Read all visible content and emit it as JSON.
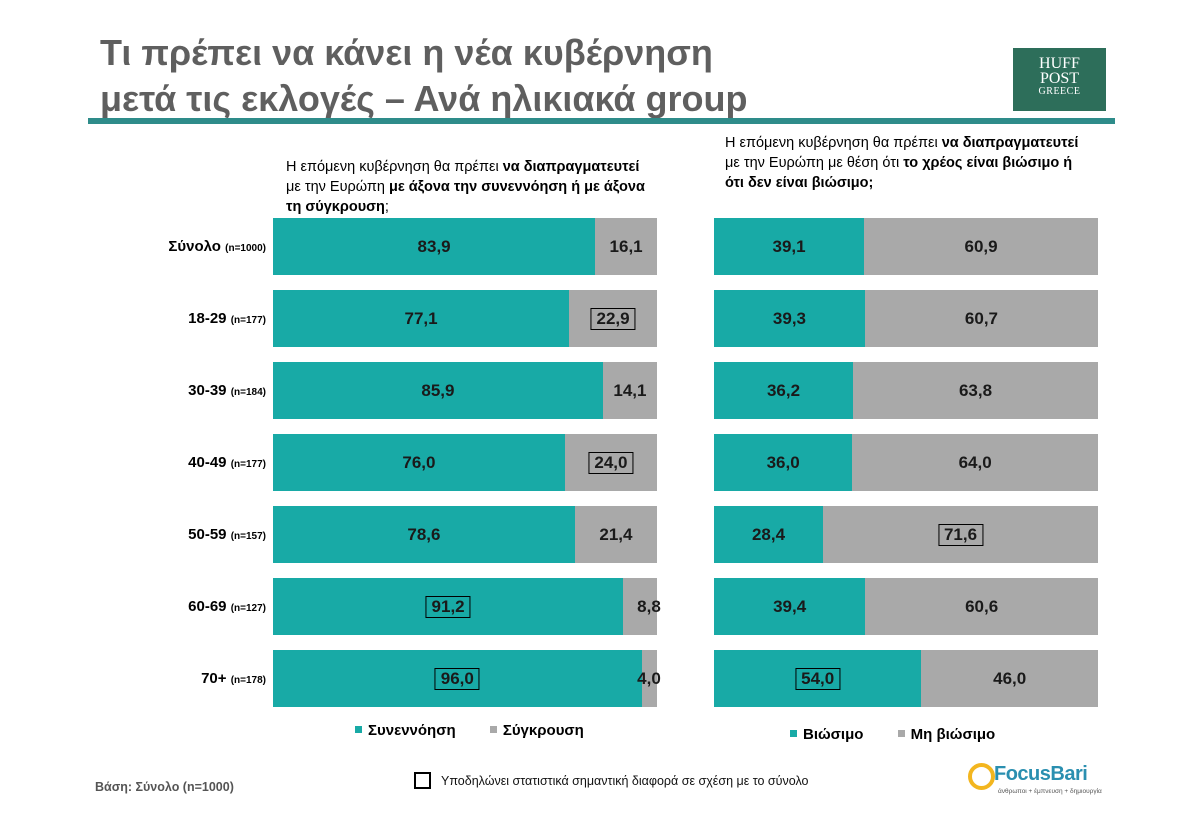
{
  "title_line1": "Τι πρέπει να κάνει η νέα κυβέρνηση",
  "title_line2": "μετά τις εκλογές – Ανά ηλικιακά group",
  "logo": {
    "line1": "HUFF",
    "line2": "POST",
    "line3": "GREECE"
  },
  "left_header": {
    "p1": "Η επόμενη κυβέρνηση θα πρέπει ",
    "b1": "να διαπραγματευτεί",
    "p2": " με την Ευρώπη ",
    "b2": "με άξονα την συνεννόηση ή με άξονα τη σύγκρουση",
    "p3": ";"
  },
  "right_header": {
    "p1": "Η επόμενη κυβέρνηση θα πρέπει ",
    "b1": "να διαπραγματευτεί",
    "p2": " με την Ευρώπη με θέση ότι ",
    "b2": "το χρέος είναι βιώσιμο ή ότι δεν είναι βιώσιμο;"
  },
  "rows": [
    {
      "label": "Σύνολο",
      "n": "(n=1000)"
    },
    {
      "label": "18-29",
      "n": "(n=177)"
    },
    {
      "label": "30-39",
      "n": "(n=184)"
    },
    {
      "label": "40-49",
      "n": "(n=177)"
    },
    {
      "label": "50-59",
      "n": "(n=157)"
    },
    {
      "label": "60-69",
      "n": "(n=127)"
    },
    {
      "label": "70+",
      "n": "(n=178)"
    }
  ],
  "chart_data": [
    {
      "type": "bar",
      "stacked": true,
      "orientation": "horizontal",
      "categories": [
        "Σύνολο (n=1000)",
        "18-29 (n=177)",
        "30-39 (n=184)",
        "40-49 (n=177)",
        "50-59 (n=157)",
        "60-69 (n=127)",
        "70+ (n=178)"
      ],
      "series": [
        {
          "name": "Συνεννόηση",
          "color": "#18aaa6",
          "values": [
            83.9,
            77.1,
            85.9,
            76.0,
            78.6,
            91.2,
            96.0
          ],
          "labels": [
            "83,9",
            "77,1",
            "85,9",
            "76,0",
            "78,6",
            "91,2",
            "96,0"
          ],
          "significant": [
            false,
            false,
            false,
            false,
            false,
            true,
            true
          ]
        },
        {
          "name": "Σύγκρουση",
          "color": "#a9a9a9",
          "values": [
            16.1,
            22.9,
            14.1,
            24.0,
            21.4,
            8.8,
            4.0
          ],
          "labels": [
            "16,1",
            "22,9",
            "14,1",
            "24,0",
            "21,4",
            "8,8",
            "4,0"
          ],
          "significant": [
            false,
            true,
            false,
            true,
            false,
            false,
            false
          ]
        }
      ],
      "xlim": [
        0,
        100
      ]
    },
    {
      "type": "bar",
      "stacked": true,
      "orientation": "horizontal",
      "categories": [
        "Σύνολο (n=1000)",
        "18-29 (n=177)",
        "30-39 (n=184)",
        "40-49 (n=177)",
        "50-59 (n=157)",
        "60-69 (n=127)",
        "70+ (n=178)"
      ],
      "series": [
        {
          "name": "Βιώσιμο",
          "color": "#18aaa6",
          "values": [
            39.1,
            39.3,
            36.2,
            36.0,
            28.4,
            39.4,
            54.0
          ],
          "labels": [
            "39,1",
            "39,3",
            "36,2",
            "36,0",
            "28,4",
            "39,4",
            "54,0"
          ],
          "significant": [
            false,
            false,
            false,
            false,
            false,
            false,
            true
          ]
        },
        {
          "name": "Μη βιώσιμο",
          "color": "#a9a9a9",
          "values": [
            60.9,
            60.7,
            63.8,
            64.0,
            71.6,
            60.6,
            46.0
          ],
          "labels": [
            "60,9",
            "60,7",
            "63,8",
            "64,0",
            "71,6",
            "60,6",
            "46,0"
          ],
          "significant": [
            false,
            false,
            false,
            false,
            true,
            false,
            false
          ]
        }
      ],
      "xlim": [
        0,
        100
      ]
    }
  ],
  "base_note": "Βάση: Σύνολο (n=1000)",
  "significance_note": "Υποδηλώνει στατιστικά σημαντική διαφορά σε σχέση με το σύνολο",
  "focus_logo": {
    "name": "FocusBari",
    "tagline": "άνθρωποι + έμπνευση + δημιουργία"
  }
}
